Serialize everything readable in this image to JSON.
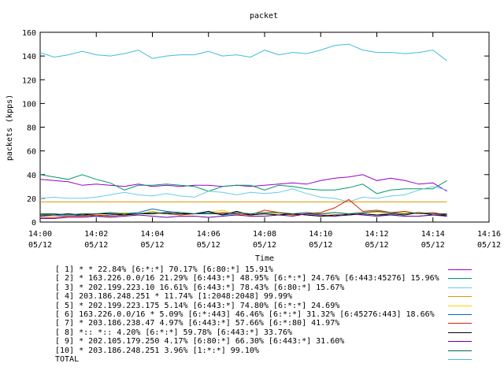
{
  "chart_data": {
    "type": "line",
    "title": "packet",
    "xlabel": "Time",
    "ylabel": "packets (kpps)",
    "ylim": [
      0,
      160
    ],
    "yticks": [
      0,
      20,
      40,
      60,
      80,
      100,
      120,
      140,
      160
    ],
    "xlim": [
      "14:00",
      "14:16"
    ],
    "xticks": [
      {
        "time": "14:00",
        "date": "05/12"
      },
      {
        "time": "14:02",
        "date": "05/12"
      },
      {
        "time": "14:04",
        "date": "05/12"
      },
      {
        "time": "14:06",
        "date": "05/12"
      },
      {
        "time": "14:08",
        "date": "05/12"
      },
      {
        "time": "14:10",
        "date": "05/12"
      },
      {
        "time": "14:12",
        "date": "05/12"
      },
      {
        "time": "14:14",
        "date": "05/12"
      },
      {
        "time": "14:16",
        "date": "05/12"
      }
    ],
    "grid": false,
    "legend_position": "bottom",
    "x": [
      "14:00",
      "14:00:30",
      "14:01",
      "14:01:30",
      "14:02",
      "14:02:30",
      "14:03",
      "14:03:30",
      "14:04",
      "14:04:30",
      "14:05",
      "14:05:30",
      "14:06",
      "14:06:30",
      "14:07",
      "14:07:30",
      "14:08",
      "14:08:30",
      "14:09",
      "14:09:30",
      "14:10",
      "14:10:30",
      "14:11",
      "14:11:30",
      "14:12",
      "14:12:30",
      "14:13",
      "14:13:30",
      "14:14",
      "14:14:30"
    ],
    "series": [
      {
        "name": "[ 1] * * 22.84%  [6:*:*] 70.17% [6:80:*] 15.91%",
        "color": "#9900cc",
        "values": [
          36,
          35,
          34,
          31,
          32,
          31,
          30,
          32,
          30,
          31,
          30,
          31,
          31,
          30,
          31,
          30,
          31,
          32,
          33,
          32,
          35,
          37,
          38,
          40,
          35,
          37,
          35,
          32,
          33,
          26
        ]
      },
      {
        "name": "[ 2] * 163.226.0.0/16 21.29%  [6:443:*] 48.95% [6:*:*] 24.76% [6:443:45276] 15.96%",
        "color": "#009966",
        "values": [
          40,
          38,
          36,
          40,
          36,
          33,
          27,
          31,
          31,
          32,
          31,
          30,
          26,
          30,
          31,
          31,
          27,
          31,
          30,
          28,
          27,
          27,
          29,
          32,
          24,
          27,
          28,
          28,
          28,
          35
        ]
      },
      {
        "name": "[ 3] * 202.199.223.10 16.61%  [6:443:*] 78.43% [6:80:*] 15.67%",
        "color": "#66ccee",
        "values": [
          20,
          21,
          20,
          20,
          21,
          23,
          25,
          23,
          22,
          24,
          22,
          21,
          26,
          25,
          23,
          25,
          24,
          25,
          28,
          24,
          21,
          20,
          17,
          21,
          20,
          22,
          23,
          27,
          30,
          27
        ]
      },
      {
        "name": "[ 4] 203.186.248.251 * 11.74%  [1:2048:2048] 99.99%",
        "color": "#dd9900",
        "values": [
          17,
          17,
          17,
          17,
          17,
          17,
          17,
          17,
          17,
          17,
          17,
          17,
          17,
          17,
          17,
          17,
          17,
          17,
          17,
          17,
          17,
          17,
          17,
          17,
          17,
          17,
          17,
          17,
          17,
          17
        ]
      },
      {
        "name": "[ 5] * 202.199.223.175 5.14%  [6:443:*] 74.80% [6:*:*] 24.69%",
        "color": "#ffcc00",
        "values": [
          6,
          7,
          6,
          7,
          6,
          6,
          8,
          7,
          9,
          7,
          8,
          7,
          8,
          10,
          6,
          7,
          8,
          7,
          6,
          7,
          7,
          6,
          7,
          8,
          8,
          7,
          8,
          7,
          7,
          6
        ]
      },
      {
        "name": "[ 6] 163.226.0.0/16 * 5.09%  [6:*:443] 46.46% [6:*:*] 31.32% [6:45276:443] 18.66%",
        "color": "#0066cc",
        "values": [
          5,
          6,
          5,
          6,
          5,
          6,
          7,
          8,
          11,
          9,
          8,
          7,
          8,
          6,
          7,
          6,
          7,
          6,
          7,
          6,
          5,
          5,
          6,
          7,
          6,
          6,
          5,
          5,
          6,
          5
        ]
      },
      {
        "name": "[ 7] * 203.186.238.47 4.97%  [6:443:*] 57.66% [6:*:80] 41.97%",
        "color": "#dd2200",
        "values": [
          4,
          4,
          5,
          5,
          6,
          5,
          6,
          7,
          8,
          7,
          6,
          7,
          7,
          8,
          7,
          6,
          10,
          8,
          6,
          7,
          8,
          12,
          19,
          9,
          10,
          8,
          9,
          7,
          8,
          6
        ]
      },
      {
        "name": "[ 8] *:: *:: 4.20%  [6:*:*] 59.78% [6:443:*] 33.76%",
        "color": "#000000",
        "values": [
          6,
          6,
          7,
          6,
          7,
          7,
          6,
          7,
          7,
          8,
          7,
          7,
          9,
          6,
          9,
          6,
          7,
          6,
          7,
          6,
          5,
          6,
          6,
          7,
          6,
          7,
          6,
          8,
          6,
          6
        ]
      },
      {
        "name": "[ 9] * 202.105.179.250 4.17%  [6:80:*] 66.30% [6:443:*] 31.60%",
        "color": "#660099",
        "values": [
          3,
          3,
          4,
          4,
          5,
          4,
          5,
          6,
          5,
          4,
          5,
          5,
          4,
          5,
          6,
          5,
          5,
          6,
          5,
          7,
          6,
          5,
          7,
          6,
          5,
          6,
          5,
          5,
          6,
          5
        ]
      },
      {
        "name": "[10] * 203.186.248.251 3.96%  [1:*:*] 99.10%",
        "color": "#006644",
        "values": [
          7,
          7,
          6,
          7,
          7,
          8,
          7,
          7,
          8,
          7,
          8,
          7,
          7,
          7,
          8,
          7,
          8,
          8,
          7,
          8,
          7,
          8,
          7,
          8,
          9,
          8,
          7,
          8,
          7,
          7
        ]
      },
      {
        "name": "TOTAL",
        "color": "#44bbdd",
        "values": [
          143,
          139,
          141,
          144,
          141,
          140,
          142,
          145,
          138,
          140,
          141,
          141,
          144,
          140,
          141,
          139,
          145,
          141,
          143,
          142,
          145,
          149,
          150,
          145,
          143,
          143,
          142,
          143,
          145,
          136
        ]
      }
    ]
  }
}
